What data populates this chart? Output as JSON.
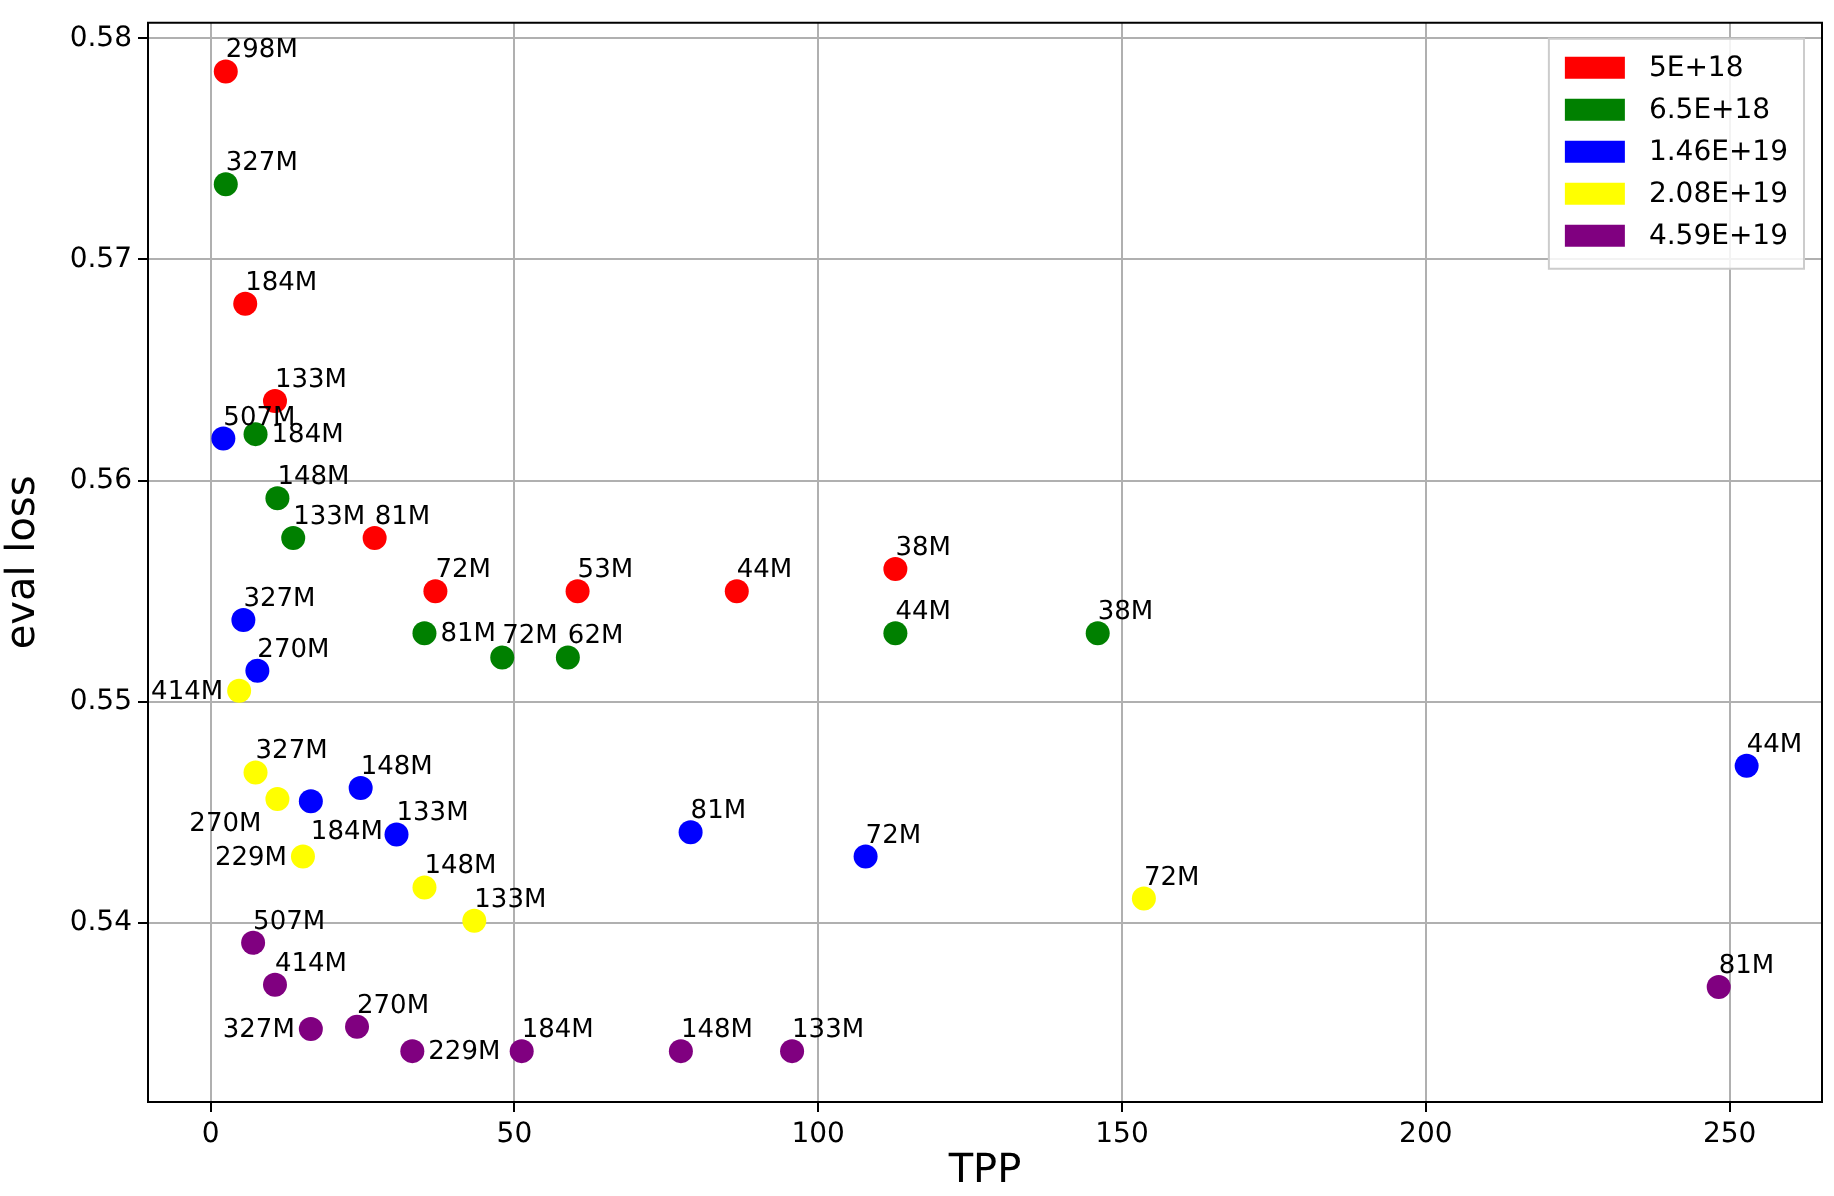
{
  "chart_data": {
    "type": "scatter",
    "xlabel": "TPP",
    "ylabel": "eval loss",
    "xlim": [
      -10.3,
      265.2
    ],
    "ylim": [
      0.5319,
      0.5807
    ],
    "xticks": [
      0,
      50,
      100,
      150,
      200,
      250
    ],
    "yticks": [
      0.54,
      0.55,
      0.56,
      0.57,
      0.58
    ],
    "grid": true,
    "legend": "top right",
    "marker": "circle",
    "series": [
      {
        "name": "5E+18",
        "color": "#ff0000",
        "x": [
          2.5,
          5.7,
          10.6,
          27,
          37,
          60.4,
          86.6,
          112.7
        ],
        "values": [
          0.5785,
          0.568,
          0.5636,
          0.5574,
          0.555,
          0.555,
          0.555,
          0.556
        ]
      },
      {
        "name": "6.5E+18",
        "color": "#008000",
        "x": [
          2.5,
          7.4,
          11,
          13.6,
          35.2,
          48,
          58.8,
          112.7,
          146
        ],
        "values": [
          0.5734,
          0.5621,
          0.5592,
          0.5574,
          0.5531,
          0.552,
          0.552,
          0.5531,
          0.5531
        ]
      },
      {
        "name": "1.46E+19",
        "color": "#0000ff",
        "x": [
          2.1,
          5.4,
          7.7,
          16.5,
          24.7,
          30.6,
          79,
          107.8,
          252.8
        ],
        "values": [
          0.5619,
          0.5537,
          0.5514,
          0.5455,
          0.5461,
          0.544,
          0.5441,
          0.543,
          0.5471
        ]
      },
      {
        "name": "2.08E+19",
        "color": "#ffff00",
        "x": [
          4.7,
          7.4,
          11,
          15.2,
          35.2,
          43.4,
          153.6
        ],
        "values": [
          0.5505,
          0.5468,
          0.5456,
          0.543,
          0.5416,
          0.5401,
          0.5411
        ]
      },
      {
        "name": "4.59E+19",
        "color": "#800080",
        "x": [
          7,
          10.6,
          16.5,
          24.1,
          33.2,
          51.2,
          77.4,
          95.7,
          248.2
        ],
        "values": [
          0.5391,
          0.5372,
          0.5352,
          0.5353,
          0.5342,
          0.5342,
          0.5342,
          0.5342,
          0.5371
        ]
      }
    ],
    "annotations": [
      {
        "text": "298M",
        "x": 2.5,
        "y": 0.5785
      },
      {
        "text": "184M",
        "x": 5.7,
        "y": 0.568
      },
      {
        "text": "133M",
        "x": 10.6,
        "y": 0.5636
      },
      {
        "text": "81M",
        "x": 27,
        "y": 0.5574
      },
      {
        "text": "72M",
        "x": 37,
        "y": 0.555
      },
      {
        "text": "53M",
        "x": 60.4,
        "y": 0.555
      },
      {
        "text": "44M",
        "x": 86.6,
        "y": 0.555
      },
      {
        "text": "38M",
        "x": 112.7,
        "y": 0.556
      },
      {
        "text": "327M",
        "x": 2.5,
        "y": 0.5734
      },
      {
        "text": "184M",
        "x": 7.4,
        "y": 0.5621
      },
      {
        "text": "148M",
        "x": 11,
        "y": 0.5592
      },
      {
        "text": "133M",
        "x": 13.6,
        "y": 0.5574
      },
      {
        "text": "81M",
        "x": 35.2,
        "y": 0.5531
      },
      {
        "text": "72M",
        "x": 48,
        "y": 0.552
      },
      {
        "text": "62M",
        "x": 58.8,
        "y": 0.552
      },
      {
        "text": "44M",
        "x": 112.7,
        "y": 0.5531
      },
      {
        "text": "38M",
        "x": 146,
        "y": 0.5531
      },
      {
        "text": "507M",
        "x": 2.1,
        "y": 0.5619
      },
      {
        "text": "327M",
        "x": 5.4,
        "y": 0.5537
      },
      {
        "text": "270M",
        "x": 7.7,
        "y": 0.5514
      },
      {
        "text": "184M",
        "x": 16.5,
        "y": 0.5455
      },
      {
        "text": "148M",
        "x": 24.7,
        "y": 0.5461
      },
      {
        "text": "133M",
        "x": 30.6,
        "y": 0.544
      },
      {
        "text": "81M",
        "x": 79,
        "y": 0.5441
      },
      {
        "text": "72M",
        "x": 107.8,
        "y": 0.543
      },
      {
        "text": "44M",
        "x": 252.8,
        "y": 0.5471
      },
      {
        "text": "414M",
        "x": 4.7,
        "y": 0.5505
      },
      {
        "text": "327M",
        "x": 7.4,
        "y": 0.5468
      },
      {
        "text": "270M",
        "x": 11,
        "y": 0.5456
      },
      {
        "text": "229M",
        "x": 15.2,
        "y": 0.543
      },
      {
        "text": "148M",
        "x": 35.2,
        "y": 0.5416
      },
      {
        "text": "133M",
        "x": 43.4,
        "y": 0.5401
      },
      {
        "text": "72M",
        "x": 153.6,
        "y": 0.5411
      },
      {
        "text": "507M",
        "x": 7,
        "y": 0.5391
      },
      {
        "text": "414M",
        "x": 10.6,
        "y": 0.5372
      },
      {
        "text": "327M",
        "x": 16.5,
        "y": 0.5352
      },
      {
        "text": "270M",
        "x": 24.1,
        "y": 0.5353
      },
      {
        "text": "229M",
        "x": 33.2,
        "y": 0.5342
      },
      {
        "text": "184M",
        "x": 51.2,
        "y": 0.5342
      },
      {
        "text": "148M",
        "x": 77.4,
        "y": 0.5342
      },
      {
        "text": "133M",
        "x": 95.7,
        "y": 0.5342
      },
      {
        "text": "81M",
        "x": 248.2,
        "y": 0.5371
      }
    ]
  }
}
